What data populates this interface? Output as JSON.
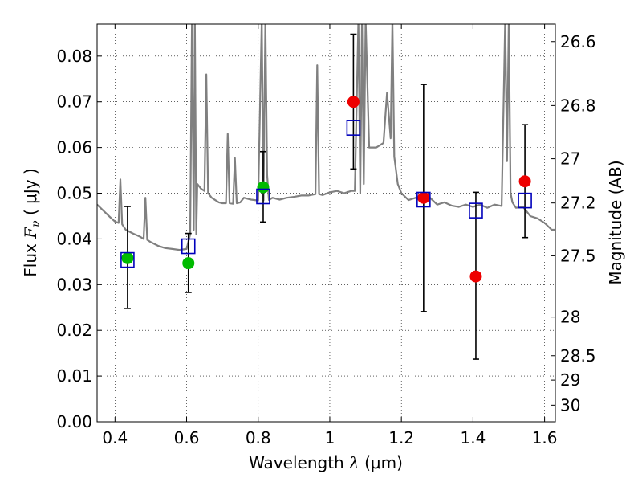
{
  "chart_data": {
    "type": "scatter",
    "xlabel": {
      "prefix": "Wavelength  ",
      "symbol": "λ",
      "unit": " (μm)"
    },
    "ylabel": {
      "prefix": "Flux  ",
      "symbol": "F",
      "subscript": "ν",
      "unit": "  ( μJy )"
    },
    "y2label": "Magnitude (AB)",
    "xlim": [
      0.35,
      1.63
    ],
    "ylim": [
      0.0,
      0.087
    ],
    "x_ticks": [
      0.4,
      0.6,
      0.8,
      1.0,
      1.2,
      1.4,
      1.6
    ],
    "x_tick_labels": [
      "0.4",
      "0.6",
      "0.8",
      "1",
      "1.2",
      "1.4",
      "1.6"
    ],
    "y_ticks": [
      0.0,
      0.01,
      0.02,
      0.03,
      0.04,
      0.05,
      0.06,
      0.07,
      0.08
    ],
    "y_tick_labels": [
      "0.00",
      "0.01",
      "0.02",
      "0.03",
      "0.04",
      "0.05",
      "0.06",
      "0.07",
      "0.08"
    ],
    "right_ticks": [
      {
        "mag": 26.6,
        "label": "26.6"
      },
      {
        "mag": 26.8,
        "label": "26.8"
      },
      {
        "mag": 27.0,
        "label": "27"
      },
      {
        "mag": 27.2,
        "label": "27.2"
      },
      {
        "mag": 27.5,
        "label": "27.5"
      },
      {
        "mag": 28.0,
        "label": "28"
      },
      {
        "mag": 28.5,
        "label": "28.5"
      },
      {
        "mag": 29.0,
        "label": "29"
      },
      {
        "mag": 30.0,
        "label": "30"
      }
    ],
    "grid": true,
    "colors": {
      "template": "#808080",
      "observed_green": "#00bb00",
      "observed_red": "#ee0000",
      "model_box": "#0000bb",
      "errorbar": "#000000"
    },
    "template_spectrum": {
      "x": [
        0.35,
        0.37,
        0.39,
        0.4,
        0.41,
        0.415,
        0.42,
        0.43,
        0.45,
        0.47,
        0.48,
        0.485,
        0.49,
        0.5,
        0.52,
        0.54,
        0.56,
        0.58,
        0.6,
        0.61,
        0.615,
        0.62,
        0.623,
        0.627,
        0.63,
        0.64,
        0.65,
        0.655,
        0.66,
        0.67,
        0.68,
        0.69,
        0.7,
        0.71,
        0.715,
        0.72,
        0.73,
        0.735,
        0.74,
        0.75,
        0.76,
        0.78,
        0.8,
        0.81,
        0.815,
        0.82,
        0.825,
        0.83,
        0.84,
        0.86,
        0.88,
        0.9,
        0.92,
        0.94,
        0.96,
        0.965,
        0.97,
        0.98,
        1.0,
        1.02,
        1.04,
        1.06,
        1.07,
        1.08,
        1.085,
        1.09,
        1.095,
        1.1,
        1.11,
        1.13,
        1.15,
        1.16,
        1.17,
        1.175,
        1.18,
        1.19,
        1.2,
        1.22,
        1.24,
        1.26,
        1.28,
        1.3,
        1.32,
        1.34,
        1.36,
        1.38,
        1.4,
        1.42,
        1.44,
        1.46,
        1.48,
        1.49,
        1.495,
        1.5,
        1.505,
        1.51,
        1.52,
        1.54,
        1.56,
        1.58,
        1.6,
        1.62,
        1.63
      ],
      "y": [
        0.0475,
        0.046,
        0.0445,
        0.0438,
        0.0435,
        0.053,
        0.0432,
        0.042,
        0.0412,
        0.0405,
        0.04,
        0.049,
        0.0398,
        0.0393,
        0.0385,
        0.038,
        0.0378,
        0.0376,
        0.0378,
        0.041,
        0.088,
        0.042,
        0.088,
        0.041,
        0.052,
        0.051,
        0.0505,
        0.076,
        0.05,
        0.049,
        0.0485,
        0.048,
        0.0478,
        0.0478,
        0.063,
        0.0478,
        0.0477,
        0.0577,
        0.0478,
        0.048,
        0.049,
        0.0486,
        0.0484,
        0.088,
        0.0484,
        0.088,
        0.054,
        0.0485,
        0.049,
        0.0486,
        0.049,
        0.0492,
        0.0495,
        0.0495,
        0.0498,
        0.078,
        0.0498,
        0.0496,
        0.0502,
        0.0505,
        0.05,
        0.0505,
        0.0505,
        0.088,
        0.05,
        0.088,
        0.052,
        0.088,
        0.06,
        0.06,
        0.061,
        0.072,
        0.062,
        0.088,
        0.058,
        0.052,
        0.05,
        0.0485,
        0.049,
        0.048,
        0.049,
        0.0475,
        0.048,
        0.0473,
        0.047,
        0.0475,
        0.047,
        0.0475,
        0.0468,
        0.0475,
        0.0472,
        0.088,
        0.057,
        0.088,
        0.05,
        0.048,
        0.0468,
        0.047,
        0.045,
        0.0445,
        0.0435,
        0.042,
        0.042
      ]
    },
    "observed_green": [
      {
        "x": 0.435,
        "y": 0.0358
      },
      {
        "x": 0.605,
        "y": 0.0347
      },
      {
        "x": 0.814,
        "y": 0.0513
      }
    ],
    "observed_red": [
      {
        "x": 1.066,
        "y": 0.07
      },
      {
        "x": 1.262,
        "y": 0.049
      },
      {
        "x": 1.408,
        "y": 0.0318
      },
      {
        "x": 1.545,
        "y": 0.0526
      }
    ],
    "model_points": [
      {
        "x": 0.435,
        "y": 0.0354
      },
      {
        "x": 0.605,
        "y": 0.0384
      },
      {
        "x": 0.814,
        "y": 0.0493
      },
      {
        "x": 1.066,
        "y": 0.0643
      },
      {
        "x": 1.262,
        "y": 0.0486
      },
      {
        "x": 1.408,
        "y": 0.0462
      },
      {
        "x": 1.545,
        "y": 0.0484
      }
    ],
    "error_bars": [
      {
        "x": 0.435,
        "ylow": 0.0248,
        "yhigh": 0.0471
      },
      {
        "x": 0.605,
        "ylow": 0.0283,
        "yhigh": 0.0412
      },
      {
        "x": 0.814,
        "ylow": 0.0437,
        "yhigh": 0.0591
      },
      {
        "x": 1.066,
        "ylow": 0.0553,
        "yhigh": 0.0848
      },
      {
        "x": 1.262,
        "ylow": 0.0241,
        "yhigh": 0.0738
      },
      {
        "x": 1.408,
        "ylow": 0.0137,
        "yhigh": 0.0502
      },
      {
        "x": 1.545,
        "ylow": 0.0403,
        "yhigh": 0.065
      }
    ]
  }
}
